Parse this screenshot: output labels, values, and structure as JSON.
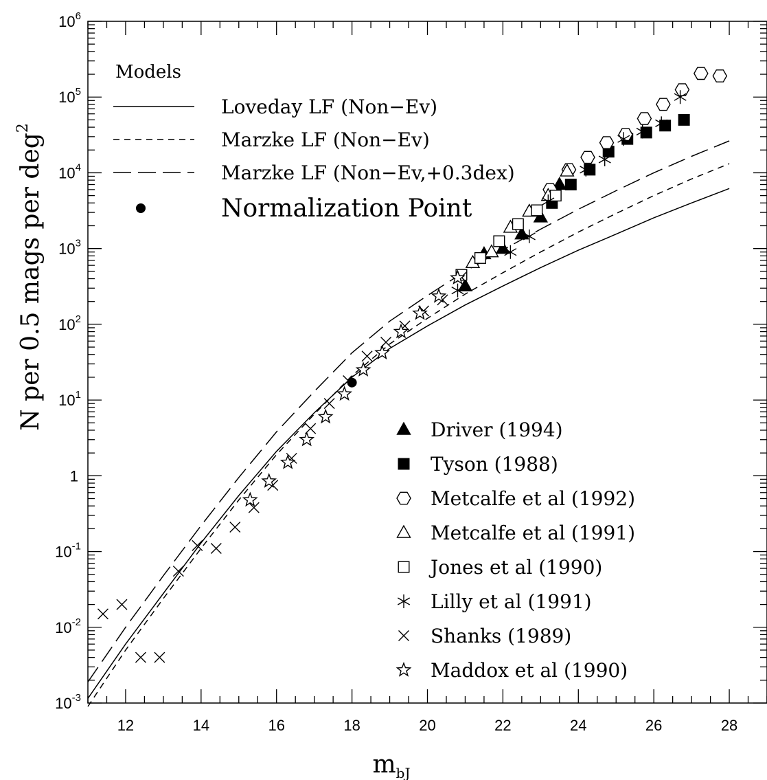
{
  "chart_data": {
    "type": "scatter",
    "xlabel_main": "m",
    "xlabel_sub": "bJ",
    "ylabel_main": "N per 0.5 mags per deg",
    "ylabel_sup": "2",
    "xlim": [
      11,
      29
    ],
    "ylim_log10": [
      -3,
      6
    ],
    "y_scale": "log",
    "x_ticks": [
      12,
      14,
      16,
      18,
      20,
      22,
      24,
      26,
      28
    ],
    "y_ticks": [
      {
        "base": "10",
        "exp": "-3"
      },
      {
        "base": "10",
        "exp": "-2"
      },
      {
        "base": "10",
        "exp": "-1"
      },
      {
        "base": "1",
        "exp": ""
      },
      {
        "base": "10",
        "exp": "1"
      },
      {
        "base": "10",
        "exp": "2"
      },
      {
        "base": "10",
        "exp": "3"
      },
      {
        "base": "10",
        "exp": "4"
      },
      {
        "base": "10",
        "exp": "5"
      },
      {
        "base": "10",
        "exp": "6"
      }
    ],
    "models_title": "Models",
    "models": [
      {
        "name": "Loveday LF (Non−Ev)",
        "style": "solid",
        "points": [
          [
            11,
            0.00115
          ],
          [
            12,
            0.006
          ],
          [
            13,
            0.028
          ],
          [
            14,
            0.13
          ],
          [
            15,
            0.55
          ],
          [
            16,
            2.1
          ],
          [
            17,
            6.8
          ],
          [
            18,
            20
          ],
          [
            19,
            48
          ],
          [
            20,
            95
          ],
          [
            21,
            180
          ],
          [
            22,
            320
          ],
          [
            23,
            560
          ],
          [
            24,
            950
          ],
          [
            25,
            1550
          ],
          [
            26,
            2550
          ],
          [
            27,
            4000
          ],
          [
            28,
            6200
          ]
        ]
      },
      {
        "name": "Marzke LF (Non−Ev)",
        "style": "short-dash",
        "points": [
          [
            11,
            0.0009
          ],
          [
            12,
            0.005
          ],
          [
            13,
            0.024
          ],
          [
            14,
            0.11
          ],
          [
            15,
            0.48
          ],
          [
            16,
            1.9
          ],
          [
            17,
            6.5
          ],
          [
            18,
            21
          ],
          [
            19,
            55
          ],
          [
            20,
            120
          ],
          [
            21,
            250
          ],
          [
            22,
            480
          ],
          [
            23,
            900
          ],
          [
            24,
            1650
          ],
          [
            25,
            2900
          ],
          [
            26,
            5000
          ],
          [
            27,
            8300
          ],
          [
            28,
            13200
          ]
        ]
      },
      {
        "name": "Marzke LF (Non−Ev,+0.3dex)",
        "style": "long-dash",
        "points": [
          [
            11,
            0.0019
          ],
          [
            12,
            0.01
          ],
          [
            13,
            0.048
          ],
          [
            14,
            0.22
          ],
          [
            15,
            0.95
          ],
          [
            16,
            3.8
          ],
          [
            17,
            13
          ],
          [
            18,
            42
          ],
          [
            19,
            110
          ],
          [
            20,
            240
          ],
          [
            21,
            500
          ],
          [
            22,
            960
          ],
          [
            23,
            1800
          ],
          [
            24,
            3300
          ],
          [
            25,
            5800
          ],
          [
            26,
            10000
          ],
          [
            27,
            16500
          ],
          [
            28,
            26400
          ]
        ]
      }
    ],
    "normalization": {
      "name": "Normalization Point",
      "x": 18.0,
      "y": 17
    },
    "series": [
      {
        "name": "Driver (1994)",
        "marker": "triangle-filled",
        "points": [
          [
            21.0,
            320
          ],
          [
            21.5,
            850
          ],
          [
            22.0,
            1000
          ],
          [
            22.5,
            1550
          ],
          [
            23.0,
            2600
          ],
          [
            23.5,
            7000
          ]
        ]
      },
      {
        "name": "Tyson (1988)",
        "marker": "square-filled",
        "points": [
          [
            23.3,
            4000
          ],
          [
            23.8,
            7000
          ],
          [
            24.3,
            11000
          ],
          [
            24.8,
            19000
          ],
          [
            25.3,
            28000
          ],
          [
            25.8,
            34000
          ],
          [
            26.3,
            42000
          ],
          [
            26.8,
            50000
          ]
        ]
      },
      {
        "name": "Metcalfe et al (1992)",
        "marker": "hexagon-open",
        "points": [
          [
            23.25,
            6000
          ],
          [
            23.75,
            11000
          ],
          [
            24.25,
            16000
          ],
          [
            24.75,
            25000
          ],
          [
            25.25,
            32000
          ],
          [
            25.75,
            52000
          ],
          [
            26.25,
            80000
          ],
          [
            26.75,
            125000
          ],
          [
            27.25,
            205000
          ],
          [
            27.75,
            190000
          ]
        ]
      },
      {
        "name": "Metcalfe et al (1991)",
        "marker": "triangle-open",
        "points": [
          [
            21.2,
            650
          ],
          [
            21.7,
            900
          ],
          [
            22.2,
            1900
          ],
          [
            22.7,
            3100
          ],
          [
            23.2,
            5000
          ],
          [
            23.7,
            10500
          ]
        ]
      },
      {
        "name": "Jones et al (1990)",
        "marker": "square-open",
        "points": [
          [
            20.9,
            450
          ],
          [
            21.4,
            750
          ],
          [
            21.9,
            1250
          ],
          [
            22.4,
            2100
          ],
          [
            22.9,
            3200
          ],
          [
            23.4,
            5000
          ]
        ]
      },
      {
        "name": "Lilly et al (1991)",
        "marker": "asterisk",
        "points": [
          [
            20.8,
            280
          ],
          [
            22.2,
            900
          ],
          [
            22.7,
            1450
          ],
          [
            23.2,
            4200
          ],
          [
            24.2,
            11000
          ],
          [
            24.7,
            15000
          ],
          [
            25.2,
            28000
          ],
          [
            25.7,
            35000
          ],
          [
            26.2,
            45000
          ],
          [
            26.7,
            100000
          ]
        ]
      },
      {
        "name": "Shanks (1989)",
        "marker": "cross",
        "points": [
          [
            11.4,
            0.015
          ],
          [
            11.9,
            0.02
          ],
          [
            12.4,
            0.004
          ],
          [
            12.9,
            0.004
          ],
          [
            13.4,
            0.055
          ],
          [
            13.9,
            0.12
          ],
          [
            14.4,
            0.11
          ],
          [
            14.9,
            0.21
          ],
          [
            15.4,
            0.38
          ],
          [
            15.9,
            0.75
          ],
          [
            16.4,
            1.7
          ],
          [
            16.9,
            4.2
          ],
          [
            17.4,
            9
          ],
          [
            17.9,
            18
          ],
          [
            18.4,
            38
          ],
          [
            18.9,
            58
          ],
          [
            19.4,
            95
          ],
          [
            19.9,
            150
          ],
          [
            20.4,
            210
          ],
          [
            20.9,
            420
          ]
        ]
      },
      {
        "name": "Maddox et al (1990)",
        "marker": "star-open",
        "points": [
          [
            15.3,
            0.48
          ],
          [
            15.8,
            0.85
          ],
          [
            16.3,
            1.5
          ],
          [
            16.8,
            3
          ],
          [
            17.3,
            6
          ],
          [
            17.8,
            12
          ],
          [
            18.3,
            25
          ],
          [
            18.8,
            42
          ],
          [
            19.3,
            80
          ],
          [
            19.8,
            140
          ],
          [
            20.3,
            235
          ],
          [
            20.8,
            410
          ]
        ]
      }
    ]
  }
}
